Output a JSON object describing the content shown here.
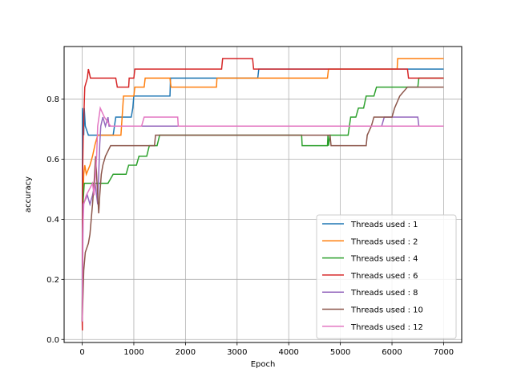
{
  "chart_data": {
    "type": "line",
    "title": "",
    "xlabel": "Epoch",
    "ylabel": "accuracy",
    "xlim": [
      -350,
      7350
    ],
    "ylim": [
      -0.01,
      0.975
    ],
    "xticks": [
      0,
      1000,
      2000,
      3000,
      4000,
      5000,
      6000,
      7000
    ],
    "xtick_labels": [
      "0",
      "1000",
      "2000",
      "3000",
      "4000",
      "5000",
      "6000",
      "7000"
    ],
    "yticks": [
      0.0,
      0.2,
      0.4,
      0.6,
      0.8
    ],
    "ytick_labels": [
      "0.0",
      "0.2",
      "0.4",
      "0.6",
      "0.8"
    ],
    "grid": true,
    "legend_position": "lower-right",
    "series": [
      {
        "name": "Threads used : 1",
        "color": "#1f77b4",
        "points": [
          [
            0,
            0.06
          ],
          [
            5,
            0.77
          ],
          [
            30,
            0.68
          ],
          [
            40,
            0.77
          ],
          [
            60,
            0.71
          ],
          [
            120,
            0.68
          ],
          [
            600,
            0.68
          ],
          [
            650,
            0.74
          ],
          [
            950,
            0.74
          ],
          [
            980,
            0.77
          ],
          [
            1000,
            0.81
          ],
          [
            1700,
            0.81
          ],
          [
            1710,
            0.87
          ],
          [
            3400,
            0.87
          ],
          [
            3420,
            0.9
          ],
          [
            7000,
            0.9
          ]
        ]
      },
      {
        "name": "Threads used : 2",
        "color": "#ff7f0e",
        "points": [
          [
            0,
            0.06
          ],
          [
            10,
            0.42
          ],
          [
            30,
            0.55
          ],
          [
            50,
            0.58
          ],
          [
            80,
            0.55
          ],
          [
            150,
            0.58
          ],
          [
            200,
            0.61
          ],
          [
            250,
            0.65
          ],
          [
            300,
            0.68
          ],
          [
            750,
            0.68
          ],
          [
            800,
            0.81
          ],
          [
            1000,
            0.81
          ],
          [
            1020,
            0.84
          ],
          [
            1200,
            0.84
          ],
          [
            1220,
            0.87
          ],
          [
            1700,
            0.87
          ],
          [
            1720,
            0.84
          ],
          [
            2600,
            0.84
          ],
          [
            2610,
            0.87
          ],
          [
            4750,
            0.87
          ],
          [
            4770,
            0.9
          ],
          [
            6100,
            0.9
          ],
          [
            6110,
            0.935
          ],
          [
            7000,
            0.935
          ]
        ]
      },
      {
        "name": "Threads used : 4",
        "color": "#2ca02c",
        "points": [
          [
            0,
            0.06
          ],
          [
            15,
            0.45
          ],
          [
            40,
            0.52
          ],
          [
            500,
            0.52
          ],
          [
            600,
            0.55
          ],
          [
            850,
            0.55
          ],
          [
            900,
            0.58
          ],
          [
            1050,
            0.58
          ],
          [
            1100,
            0.61
          ],
          [
            1250,
            0.61
          ],
          [
            1300,
            0.645
          ],
          [
            1450,
            0.645
          ],
          [
            1500,
            0.68
          ],
          [
            4250,
            0.68
          ],
          [
            4260,
            0.645
          ],
          [
            4750,
            0.645
          ],
          [
            4760,
            0.68
          ],
          [
            4770,
            0.645
          ],
          [
            4800,
            0.68
          ],
          [
            5150,
            0.68
          ],
          [
            5200,
            0.74
          ],
          [
            5300,
            0.74
          ],
          [
            5350,
            0.77
          ],
          [
            5450,
            0.77
          ],
          [
            5500,
            0.81
          ],
          [
            5650,
            0.81
          ],
          [
            5700,
            0.84
          ],
          [
            6500,
            0.84
          ],
          [
            6520,
            0.87
          ],
          [
            7000,
            0.87
          ]
        ]
      },
      {
        "name": "Threads used : 6",
        "color": "#d62728",
        "points": [
          [
            0,
            0.06
          ],
          [
            3,
            0.03
          ],
          [
            8,
            0.55
          ],
          [
            20,
            0.68
          ],
          [
            50,
            0.84
          ],
          [
            100,
            0.87
          ],
          [
            120,
            0.9
          ],
          [
            160,
            0.87
          ],
          [
            650,
            0.87
          ],
          [
            680,
            0.84
          ],
          [
            900,
            0.84
          ],
          [
            910,
            0.87
          ],
          [
            1000,
            0.87
          ],
          [
            1020,
            0.9
          ],
          [
            2700,
            0.9
          ],
          [
            2720,
            0.935
          ],
          [
            3300,
            0.935
          ],
          [
            3320,
            0.9
          ],
          [
            6300,
            0.9
          ],
          [
            6320,
            0.87
          ],
          [
            7000,
            0.87
          ]
        ]
      },
      {
        "name": "Threads used : 8",
        "color": "#9467bd",
        "points": [
          [
            0,
            0.06
          ],
          [
            20,
            0.45
          ],
          [
            100,
            0.48
          ],
          [
            150,
            0.45
          ],
          [
            200,
            0.48
          ],
          [
            250,
            0.52
          ],
          [
            300,
            0.45
          ],
          [
            320,
            0.55
          ],
          [
            340,
            0.65
          ],
          [
            360,
            0.71
          ],
          [
            400,
            0.74
          ],
          [
            450,
            0.71
          ],
          [
            500,
            0.74
          ],
          [
            520,
            0.71
          ],
          [
            1800,
            0.71
          ],
          [
            5800,
            0.71
          ],
          [
            5850,
            0.74
          ],
          [
            6500,
            0.74
          ],
          [
            6520,
            0.71
          ],
          [
            7000,
            0.71
          ]
        ]
      },
      {
        "name": "Threads used : 10",
        "color": "#8c564b",
        "points": [
          [
            0,
            0.06
          ],
          [
            30,
            0.23
          ],
          [
            60,
            0.29
          ],
          [
            120,
            0.32
          ],
          [
            150,
            0.35
          ],
          [
            200,
            0.45
          ],
          [
            230,
            0.52
          ],
          [
            260,
            0.61
          ],
          [
            300,
            0.48
          ],
          [
            320,
            0.42
          ],
          [
            340,
            0.48
          ],
          [
            370,
            0.55
          ],
          [
            400,
            0.58
          ],
          [
            450,
            0.61
          ],
          [
            550,
            0.645
          ],
          [
            1400,
            0.645
          ],
          [
            1420,
            0.68
          ],
          [
            4800,
            0.68
          ],
          [
            4820,
            0.645
          ],
          [
            5500,
            0.645
          ],
          [
            5520,
            0.68
          ],
          [
            5600,
            0.71
          ],
          [
            5650,
            0.74
          ],
          [
            6000,
            0.74
          ],
          [
            6050,
            0.77
          ],
          [
            6150,
            0.81
          ],
          [
            6300,
            0.84
          ],
          [
            7000,
            0.84
          ]
        ]
      },
      {
        "name": "Threads used : 12",
        "color": "#e377c2",
        "points": [
          [
            0,
            0.06
          ],
          [
            10,
            0.35
          ],
          [
            30,
            0.45
          ],
          [
            80,
            0.48
          ],
          [
            200,
            0.52
          ],
          [
            230,
            0.48
          ],
          [
            280,
            0.61
          ],
          [
            300,
            0.71
          ],
          [
            350,
            0.77
          ],
          [
            430,
            0.74
          ],
          [
            550,
            0.71
          ],
          [
            1150,
            0.71
          ],
          [
            1200,
            0.74
          ],
          [
            1850,
            0.74
          ],
          [
            1860,
            0.71
          ],
          [
            7000,
            0.71
          ]
        ]
      }
    ]
  }
}
